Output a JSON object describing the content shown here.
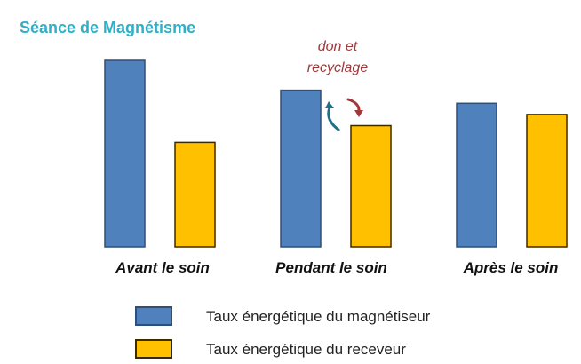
{
  "colors": {
    "title": "#31AFC7",
    "series_1": "#4F81BD",
    "series_1_stroke": "#2E4F7A",
    "series_2": "#FFC000",
    "series_2_stroke": "#3A2A00",
    "annotation": "#A0393A",
    "arrow_up": "#1F6F86",
    "arrow_down": "#A0393A"
  },
  "icons": {
    "arrow_up": "curved-arrow-up-icon",
    "arrow_down": "curved-arrow-down-icon"
  },
  "chart_data": {
    "type": "bar",
    "title": "Séance de Magnétisme",
    "categories": [
      "Avant le soin",
      "Pendant le soin",
      "Après le soin"
    ],
    "series": [
      {
        "name": "Taux énergétique du magnétiseur",
        "values": [
          100,
          84,
          77
        ]
      },
      {
        "name": "Taux énergétique du receveur",
        "values": [
          56,
          65,
          71
        ]
      }
    ],
    "ylim": [
      0,
      100
    ],
    "axes_visible": false,
    "grid": false,
    "legend_position": "bottom",
    "annotations": [
      {
        "text_line_1": "don et",
        "text_line_2": "recyclage",
        "category": "Pendant le soin"
      }
    ]
  }
}
